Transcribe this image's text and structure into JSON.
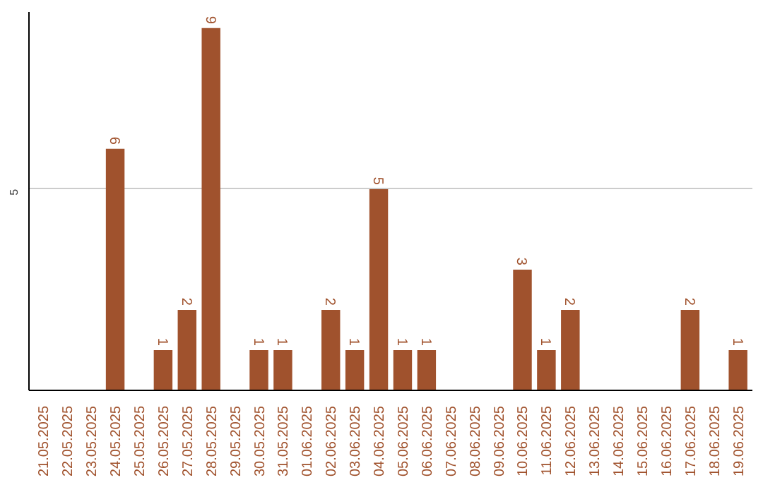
{
  "chart_data": {
    "type": "bar",
    "categories": [
      "21.05.2025",
      "22.05.2025",
      "23.05.2025",
      "24.05.2025",
      "25.05.2025",
      "26.05.2025",
      "27.05.2025",
      "28.05.2025",
      "29.05.2025",
      "30.05.2025",
      "31.05.2025",
      "01.06.2025",
      "02.06.2025",
      "03.06.2025",
      "04.06.2025",
      "05.06.2025",
      "06.06.2025",
      "07.06.2025",
      "08.06.2025",
      "09.06.2025",
      "10.06.2025",
      "11.06.2025",
      "12.06.2025",
      "13.06.2025",
      "14.06.2025",
      "15.06.2025",
      "16.06.2025",
      "17.06.2025",
      "18.06.2025",
      "19.06.2025"
    ],
    "values": [
      0,
      0,
      0,
      6,
      0,
      1,
      2,
      9,
      0,
      1,
      1,
      0,
      2,
      1,
      5,
      1,
      1,
      0,
      0,
      0,
      3,
      1,
      2,
      0,
      0,
      0,
      0,
      2,
      0,
      1
    ],
    "value_labels": [
      null,
      null,
      null,
      "6",
      null,
      "1",
      "2",
      "9",
      null,
      "1",
      "1",
      null,
      "2",
      "1",
      "5",
      "1",
      "1",
      null,
      null,
      null,
      "3",
      "1",
      "2",
      null,
      null,
      null,
      null,
      "2",
      null,
      "1"
    ],
    "color": "#a0522d",
    "ylim": [
      0,
      9.4
    ],
    "yticks": [
      5
    ],
    "grid": "y"
  }
}
